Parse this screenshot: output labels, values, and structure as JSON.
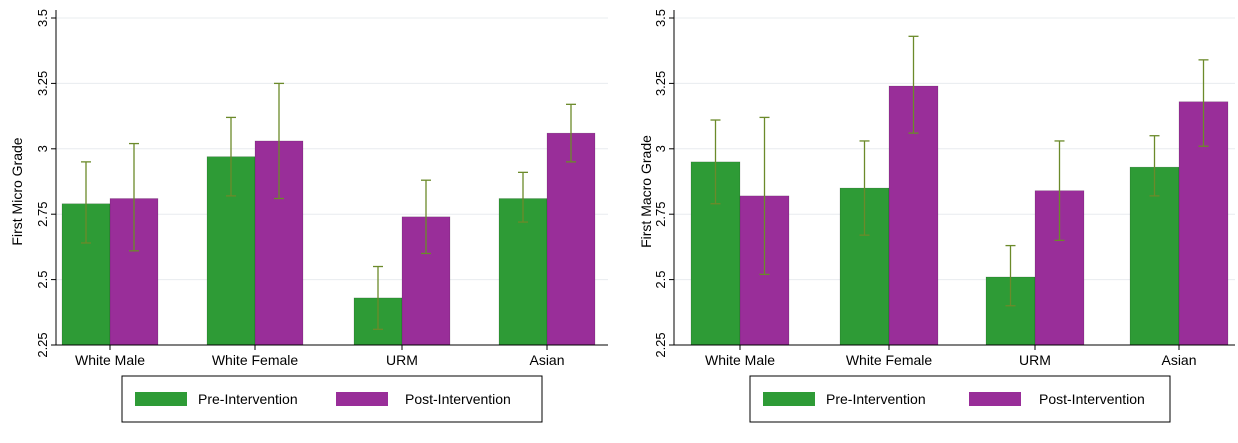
{
  "colors": {
    "pre": "#2e9b36",
    "post": "#992e99",
    "error_bar": "#6b8a2a",
    "grid": "#e8ecef",
    "axis": "#000000"
  },
  "chart_data": [
    {
      "type": "bar",
      "ylabel": "First Micro Grade",
      "ylim": [
        2.25,
        3.5
      ],
      "yticks": [
        "2.25",
        "2.5",
        "2.75",
        "3",
        "3.25",
        "3.5"
      ],
      "ytick_values": [
        2.25,
        2.5,
        2.75,
        3.0,
        3.25,
        3.5
      ],
      "grid": true,
      "legend_position": "bottom",
      "categories": [
        "White Male",
        "White Female",
        "URM",
        "Asian"
      ],
      "series": [
        {
          "name": "Pre-Intervention",
          "values": [
            2.79,
            2.97,
            2.43,
            2.81
          ],
          "ci_low": [
            2.64,
            2.82,
            2.31,
            2.72
          ],
          "ci_high": [
            2.95,
            3.12,
            2.55,
            2.91
          ]
        },
        {
          "name": "Post-Intervention",
          "values": [
            2.81,
            3.03,
            2.74,
            3.06
          ],
          "ci_low": [
            2.61,
            2.81,
            2.6,
            2.95
          ],
          "ci_high": [
            3.02,
            3.25,
            2.88,
            3.17
          ]
        }
      ]
    },
    {
      "type": "bar",
      "ylabel": "First Macro Grade",
      "ylim": [
        2.25,
        3.5
      ],
      "yticks": [
        "2.25",
        "2.5",
        "2.75",
        "3",
        "3.25",
        "3.5"
      ],
      "ytick_values": [
        2.25,
        2.5,
        2.75,
        3.0,
        3.25,
        3.5
      ],
      "grid": true,
      "legend_position": "bottom",
      "categories": [
        "White Male",
        "White Female",
        "URM",
        "Asian"
      ],
      "series": [
        {
          "name": "Pre-Intervention",
          "values": [
            2.95,
            2.85,
            2.51,
            2.93
          ],
          "ci_low": [
            2.79,
            2.67,
            2.4,
            2.82
          ],
          "ci_high": [
            3.11,
            3.03,
            2.63,
            3.05
          ]
        },
        {
          "name": "Post-Intervention",
          "values": [
            2.82,
            3.24,
            2.84,
            3.18
          ],
          "ci_low": [
            2.52,
            3.06,
            2.65,
            3.01
          ],
          "ci_high": [
            3.12,
            3.43,
            3.03,
            3.34
          ]
        }
      ]
    }
  ]
}
